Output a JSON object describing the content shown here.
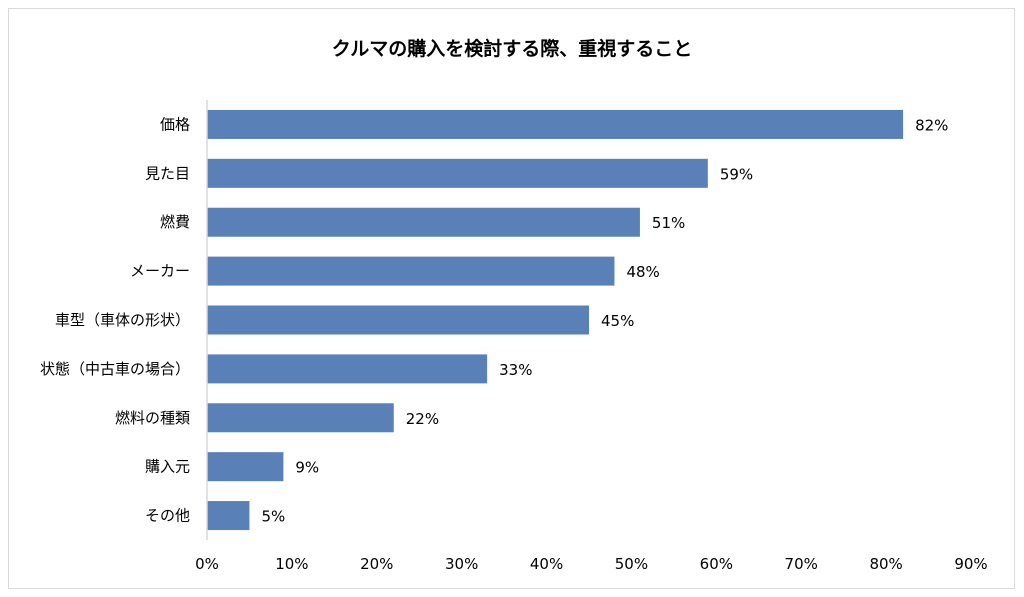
{
  "chart_data": {
    "type": "bar",
    "orientation": "horizontal",
    "title": "クルマの購入を検討する際、重視すること",
    "categories": [
      "価格",
      "見た目",
      "燃費",
      "メーカー",
      "車型（車体の形状）",
      "状態（中古車の場合）",
      "燃料の種類",
      "購入元",
      "その他"
    ],
    "values": [
      82,
      59,
      51,
      48,
      45,
      33,
      22,
      9,
      5
    ],
    "data_labels": [
      "82%",
      "59%",
      "51%",
      "48%",
      "45%",
      "33%",
      "22%",
      "9%",
      "5%"
    ],
    "xlim": [
      0,
      90
    ],
    "xticks": [
      0,
      10,
      20,
      30,
      40,
      50,
      60,
      70,
      80,
      90
    ],
    "xtick_labels": [
      "0%",
      "10%",
      "20%",
      "30%",
      "40%",
      "50%",
      "60%",
      "70%",
      "80%",
      "90%"
    ],
    "xlabel": "",
    "ylabel": "",
    "grid": false,
    "bar_color": "#5a80b8"
  }
}
